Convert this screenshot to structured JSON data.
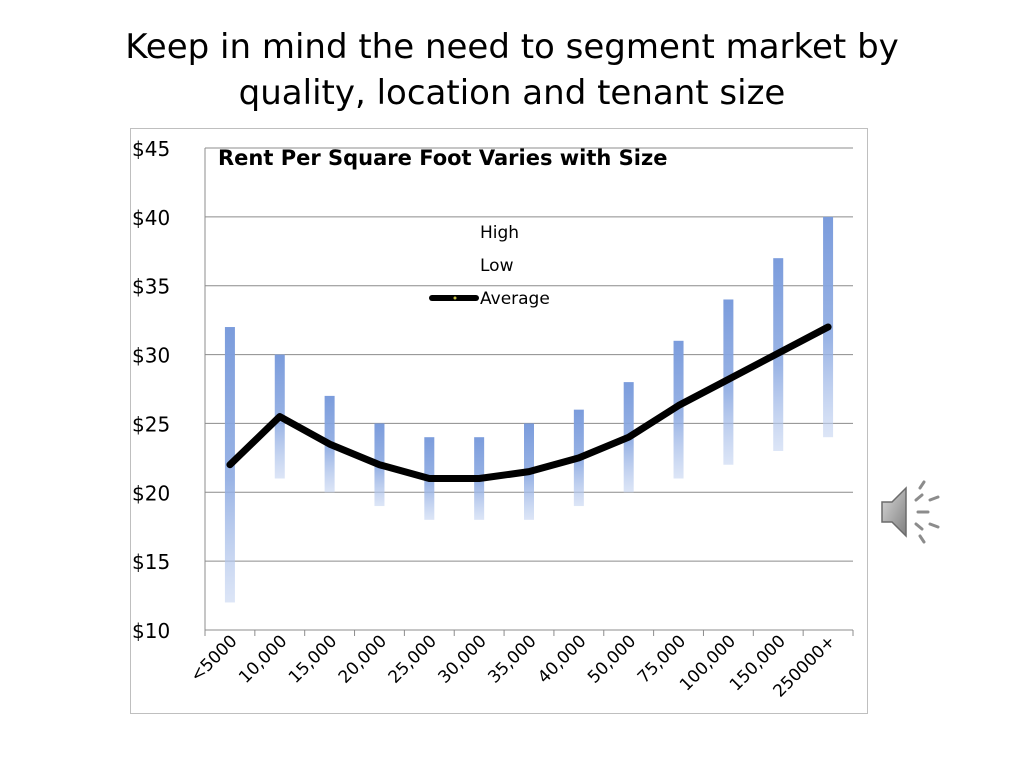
{
  "slide": {
    "title_line1": "Keep in mind the need to segment market by",
    "title_line2": "quality, location and tenant size"
  },
  "icons": {
    "speaker": "speaker-icon"
  },
  "chart_data": {
    "type": "line",
    "title": "Rent Per Square Foot Varies with Size",
    "categories": [
      "<5000",
      "10,000",
      "15,000",
      "20,000",
      "25,000",
      "30,000",
      "35,000",
      "40,000",
      "50,000",
      "75,000",
      "100,000",
      "150,000",
      "250000+"
    ],
    "series": [
      {
        "name": "High",
        "values": [
          32,
          30,
          27,
          25,
          24,
          24,
          25,
          26,
          28,
          31,
          34,
          37,
          40
        ]
      },
      {
        "name": "Low",
        "values": [
          12,
          21,
          20,
          19,
          18,
          18,
          18,
          19,
          20,
          21,
          22,
          23,
          24
        ]
      },
      {
        "name": "Average",
        "values": [
          22,
          25.5,
          23.5,
          22,
          21,
          21,
          21.5,
          22.5,
          24,
          26.3,
          28.2,
          30.1,
          32
        ]
      }
    ],
    "ylim": [
      10,
      45
    ],
    "yticks": [
      10,
      15,
      20,
      25,
      30,
      35,
      40,
      45
    ],
    "ytick_labels": [
      "$10",
      "$15",
      "$20",
      "$25",
      "$30",
      "$35",
      "$40",
      "$45"
    ],
    "grid": true,
    "legend_position": "top-center",
    "colors": {
      "bar": "#7f9fdc",
      "average": "#000000",
      "grid": "#8c8c8c"
    }
  }
}
